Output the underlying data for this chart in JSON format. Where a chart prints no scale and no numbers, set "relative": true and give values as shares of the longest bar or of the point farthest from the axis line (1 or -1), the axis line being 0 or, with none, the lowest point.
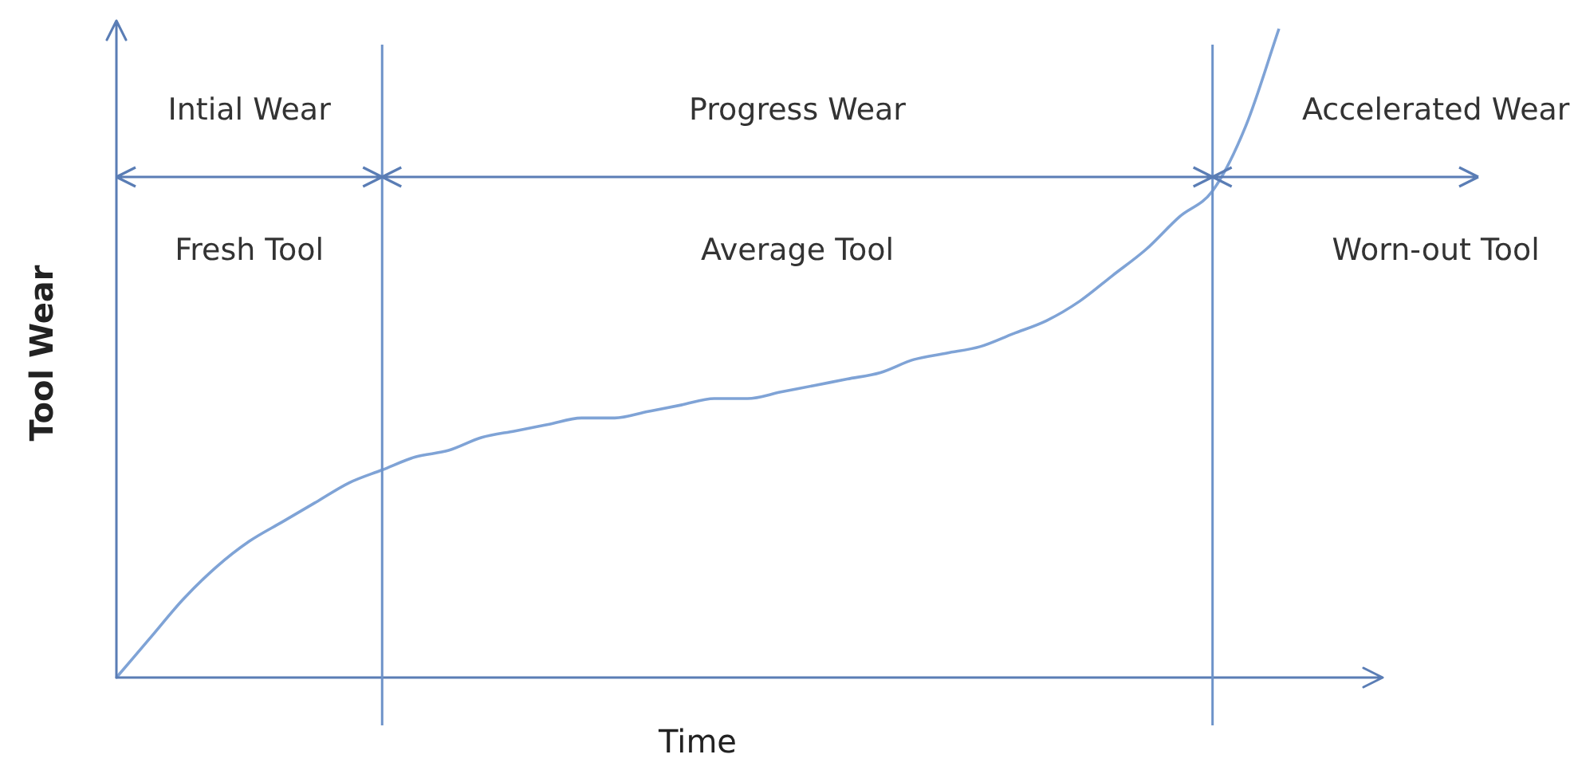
{
  "chart_data": {
    "type": "line",
    "relative": true,
    "xlabel": "Time",
    "ylabel": "Tool Wear",
    "grid": false,
    "legend": false,
    "marker": "none",
    "line_style": "solid",
    "categories": [
      null,
      null,
      null,
      null,
      null,
      null,
      null,
      null,
      null,
      null,
      null,
      null,
      null,
      null,
      null,
      null,
      null,
      null,
      null,
      null,
      null,
      null,
      null,
      null,
      null,
      null,
      null,
      null,
      null,
      null,
      null,
      null,
      null,
      null,
      null,
      null
    ],
    "series": [
      {
        "color": "#7fa3d6",
        "values": [
          0,
          0.06,
          0.12,
          0.17,
          0.21,
          0.24,
          0.27,
          0.3,
          0.32,
          0.34,
          0.35,
          0.37,
          0.38,
          0.39,
          0.4,
          0.4,
          0.41,
          0.42,
          0.43,
          0.43,
          0.44,
          0.45,
          0.46,
          0.47,
          0.49,
          0.5,
          0.51,
          0.53,
          0.55,
          0.58,
          0.62,
          0.66,
          0.71,
          0.75,
          0.85,
          1
        ]
      }
    ],
    "annotations": [
      "Intial Wear",
      "Progress Wear",
      "Accelerated Wear",
      "Fresh Tool",
      "Average Tool",
      "Worn-out Tool"
    ]
  }
}
